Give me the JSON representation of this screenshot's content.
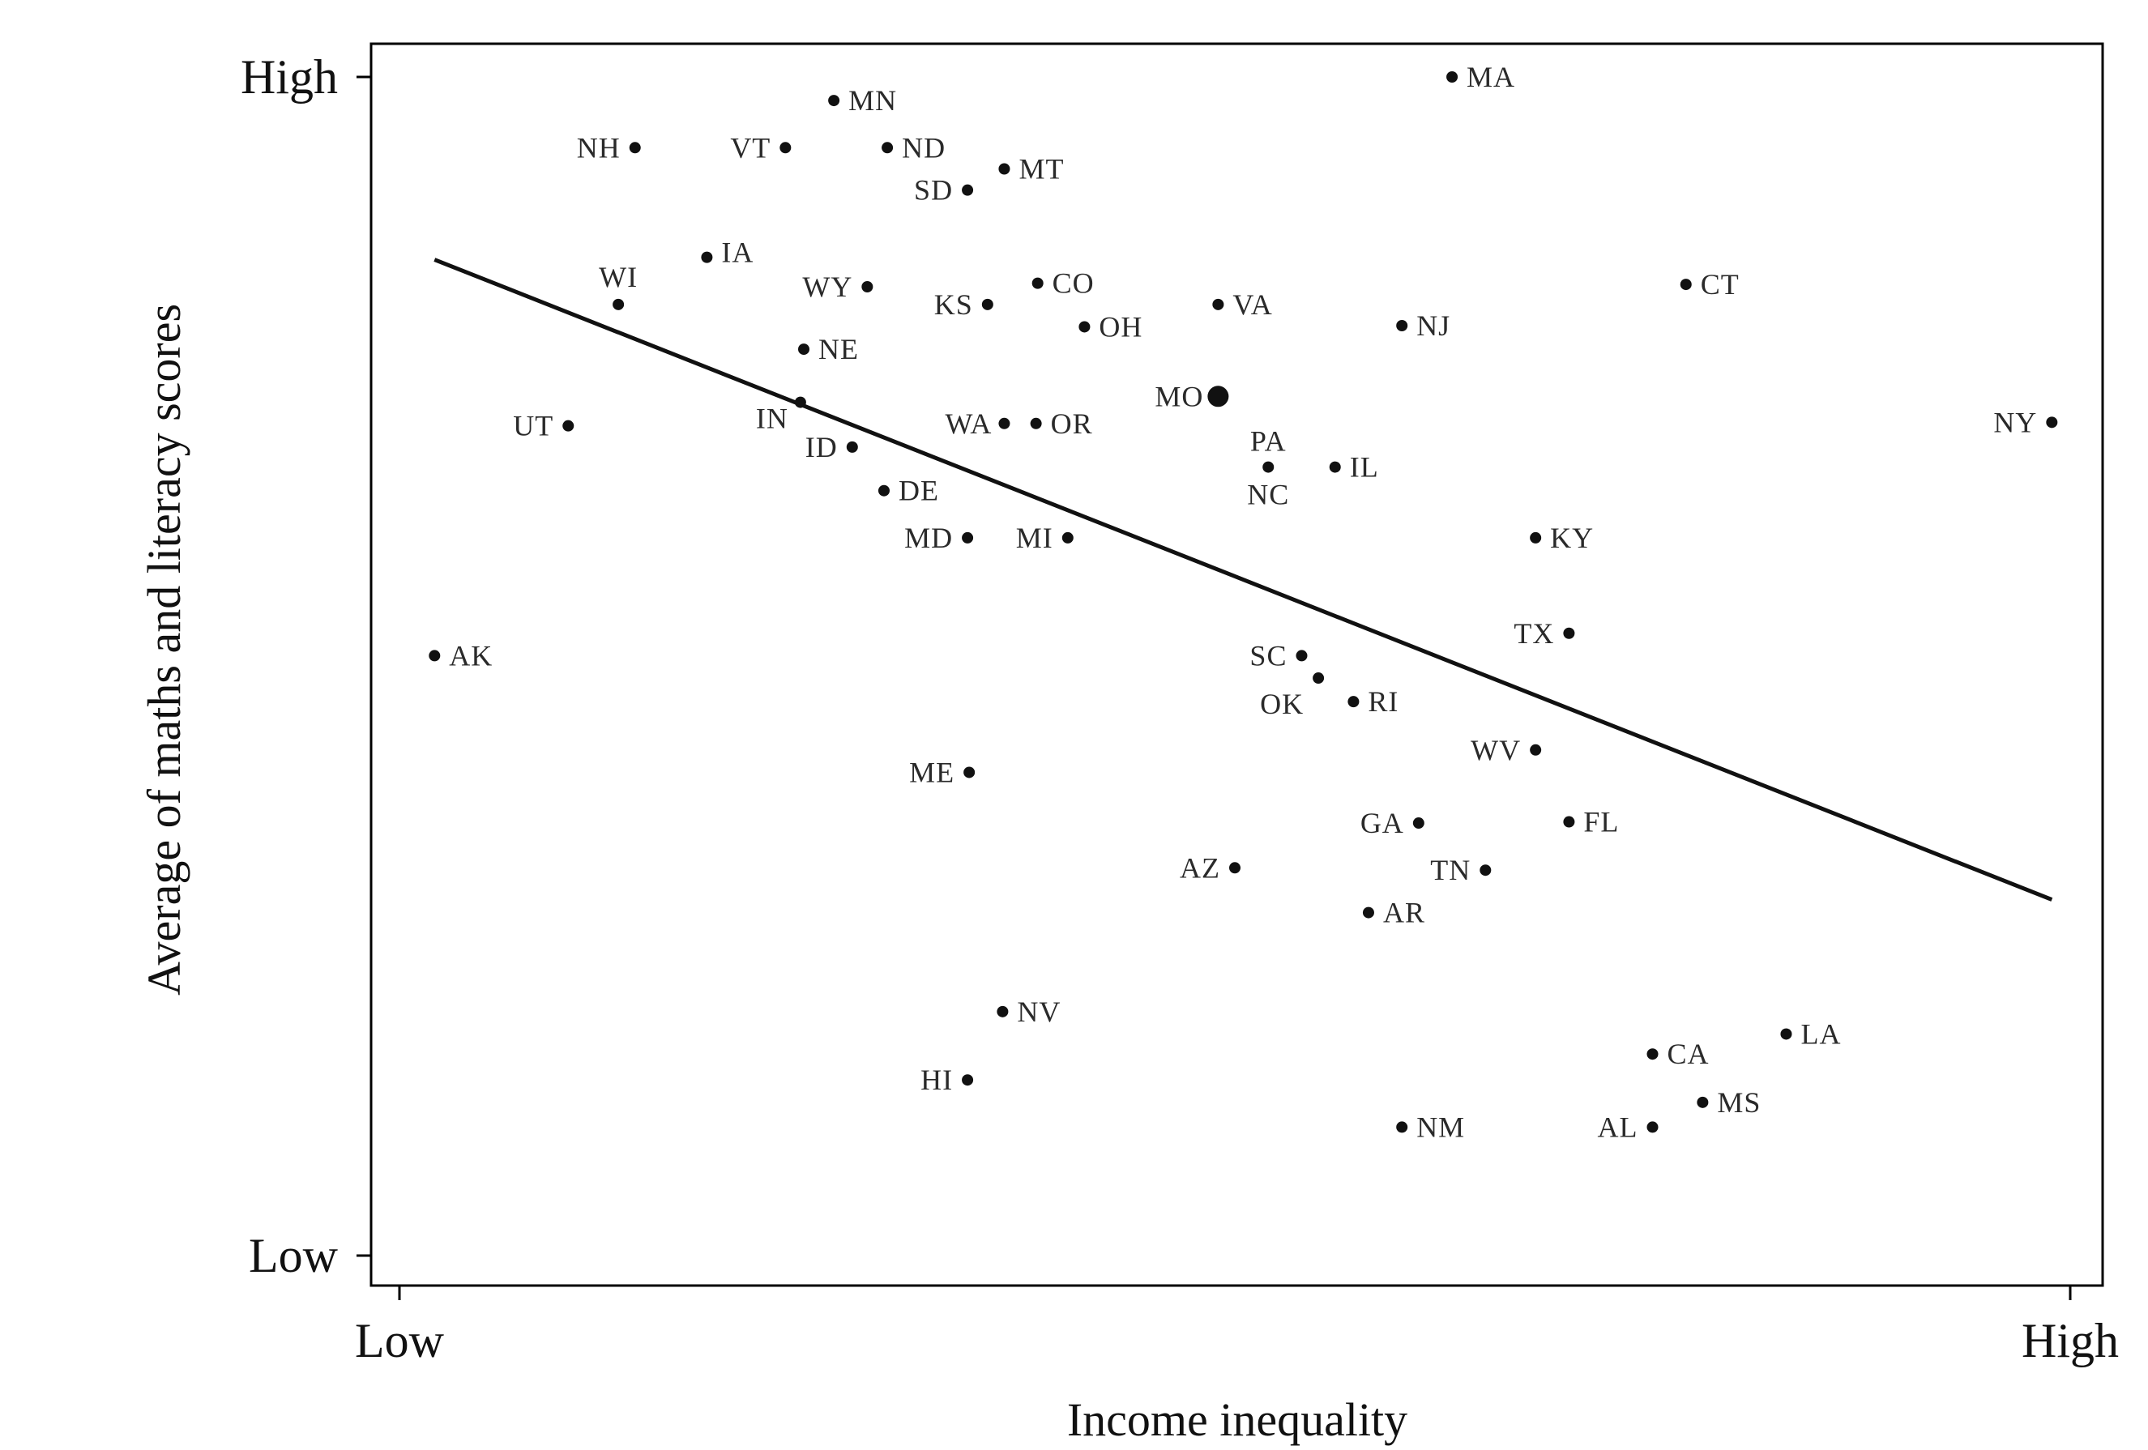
{
  "chart_data": {
    "type": "scatter",
    "xlabel": "Income inequality",
    "ylabel": "Average of maths and literacy scores",
    "x_ticks": [
      "Low",
      "High"
    ],
    "y_ticks": [
      "Low",
      "High"
    ],
    "xlim": [
      0,
      100
    ],
    "ylim": [
      0,
      100
    ],
    "grid": false,
    "points": [
      {
        "label": "MA",
        "x": 63.0,
        "y": 100.0
      },
      {
        "label": "MN",
        "x": 26.0,
        "y": 98.0
      },
      {
        "label": "NH",
        "x": 14.1,
        "y": 94.0
      },
      {
        "label": "VT",
        "x": 23.1,
        "y": 94.0
      },
      {
        "label": "ND",
        "x": 29.2,
        "y": 94.0
      },
      {
        "label": "MT",
        "x": 36.2,
        "y": 92.2
      },
      {
        "label": "SD",
        "x": 34.0,
        "y": 90.4
      },
      {
        "label": "IA",
        "x": 18.4,
        "y": 84.7
      },
      {
        "label": "WI",
        "x": 13.1,
        "y": 80.7
      },
      {
        "label": "WY",
        "x": 28.0,
        "y": 82.2
      },
      {
        "label": "KS",
        "x": 35.2,
        "y": 80.7
      },
      {
        "label": "CO",
        "x": 38.2,
        "y": 82.5
      },
      {
        "label": "VA",
        "x": 49.0,
        "y": 80.7
      },
      {
        "label": "CT",
        "x": 77.0,
        "y": 82.4
      },
      {
        "label": "OH",
        "x": 41.0,
        "y": 78.8
      },
      {
        "label": "NJ",
        "x": 60.0,
        "y": 78.9
      },
      {
        "label": "NE",
        "x": 24.2,
        "y": 76.9
      },
      {
        "label": "MO",
        "x": 49.0,
        "y": 72.9
      },
      {
        "label": "IN",
        "x": 24.0,
        "y": 72.4
      },
      {
        "label": "UT",
        "x": 10.1,
        "y": 70.4
      },
      {
        "label": "WA",
        "x": 36.2,
        "y": 70.6
      },
      {
        "label": "OR",
        "x": 38.1,
        "y": 70.6
      },
      {
        "label": "NY",
        "x": 98.9,
        "y": 70.7
      },
      {
        "label": "ID",
        "x": 27.1,
        "y": 68.6
      },
      {
        "label": "PA",
        "x": 52.0,
        "y": 66.9
      },
      {
        "label": "NC",
        "x": 52.0,
        "y": 66.9
      },
      {
        "label": "IL",
        "x": 56.0,
        "y": 66.9
      },
      {
        "label": "DE",
        "x": 29.0,
        "y": 64.9
      },
      {
        "label": "MD",
        "x": 34.0,
        "y": 60.9
      },
      {
        "label": "MI",
        "x": 40.0,
        "y": 60.9
      },
      {
        "label": "KY",
        "x": 68.0,
        "y": 60.9
      },
      {
        "label": "TX",
        "x": 70.0,
        "y": 52.8
      },
      {
        "label": "AK",
        "x": 2.1,
        "y": 50.9
      },
      {
        "label": "SC",
        "x": 54.0,
        "y": 50.9
      },
      {
        "label": "OK",
        "x": 55.0,
        "y": 49.0
      },
      {
        "label": "RI",
        "x": 57.1,
        "y": 47.0
      },
      {
        "label": "WV",
        "x": 68.0,
        "y": 42.9
      },
      {
        "label": "ME",
        "x": 34.1,
        "y": 41.0
      },
      {
        "label": "GA",
        "x": 61.0,
        "y": 36.7
      },
      {
        "label": "FL",
        "x": 70.0,
        "y": 36.8
      },
      {
        "label": "AZ",
        "x": 50.0,
        "y": 32.9
      },
      {
        "label": "TN",
        "x": 65.0,
        "y": 32.7
      },
      {
        "label": "AR",
        "x": 58.0,
        "y": 29.1
      },
      {
        "label": "NV",
        "x": 36.1,
        "y": 20.7
      },
      {
        "label": "LA",
        "x": 83.0,
        "y": 18.8
      },
      {
        "label": "CA",
        "x": 75.0,
        "y": 17.1
      },
      {
        "label": "HI",
        "x": 34.0,
        "y": 14.9
      },
      {
        "label": "MS",
        "x": 78.0,
        "y": 13.0
      },
      {
        "label": "NM",
        "x": 60.0,
        "y": 10.9
      },
      {
        "label": "AL",
        "x": 75.0,
        "y": 10.9
      }
    ],
    "trend_line": {
      "x": [
        2.1,
        98.9
      ],
      "y": [
        84.5,
        30.2
      ]
    }
  }
}
